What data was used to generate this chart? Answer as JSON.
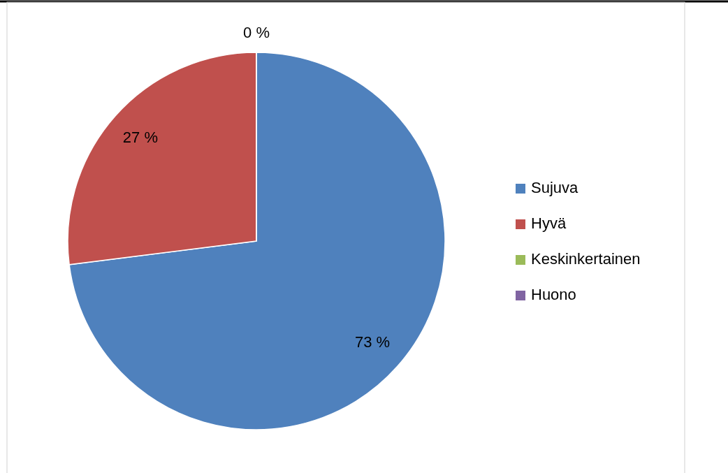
{
  "chart_data": {
    "type": "pie",
    "categories": [
      "Sujuva",
      "Hyvä",
      "Keskinkertainen",
      "Huono"
    ],
    "values": [
      73,
      27,
      0,
      0
    ],
    "colors": [
      "#4f81bd",
      "#c0504d",
      "#9bbb59",
      "#8064a2"
    ],
    "value_labels": [
      "73 %",
      "27 %",
      "0 %",
      null
    ],
    "legend": "right"
  }
}
